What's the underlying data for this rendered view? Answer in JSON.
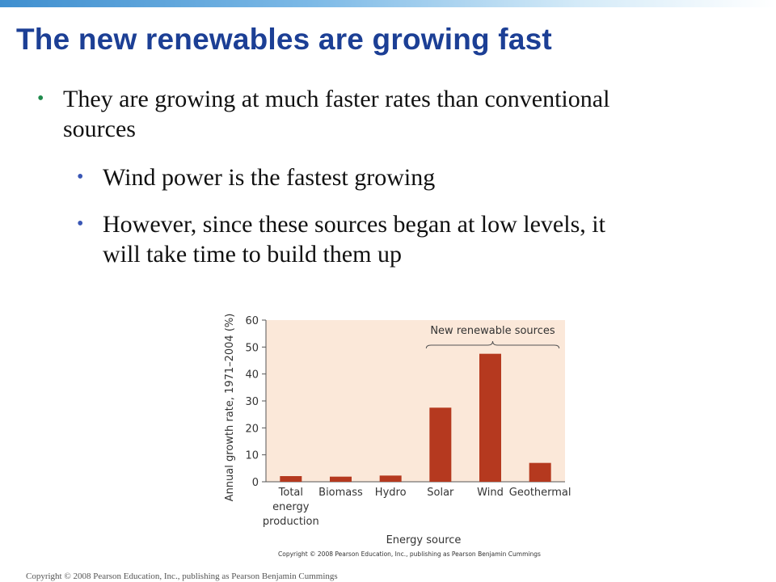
{
  "slide": {
    "title": "The new renewables are growing fast",
    "bullets": [
      "They are growing at much faster rates than conventional sources",
      "Wind power is the fastest growing",
      "However, since these sources began at low levels, it will take time to build them up"
    ],
    "footer": "Copyright © 2008 Pearson Education, Inc., publishing as Pearson Benjamin Cummings"
  },
  "colors": {
    "title": "#1c3f95",
    "bar": "#b5391f",
    "plot_background": "#fbe8d9"
  },
  "chart_data": {
    "type": "bar",
    "title": "",
    "xlabel": "Energy source",
    "ylabel": "Annual growth rate, 1971–2004 (%)",
    "categories": [
      [
        "Total",
        "energy",
        "production"
      ],
      [
        "Biomass"
      ],
      [
        "Hydro"
      ],
      [
        "Solar"
      ],
      [
        "Wind"
      ],
      [
        "Geothermal"
      ]
    ],
    "values": [
      2.1,
      1.9,
      2.3,
      27.5,
      47.5,
      7.0
    ],
    "ylim": [
      0,
      60
    ],
    "yticks": [
      0,
      10,
      20,
      30,
      40,
      50,
      60
    ],
    "grid": false,
    "annotation": {
      "text": "New renewable sources",
      "span_from": "Solar",
      "span_to": "Geothermal"
    },
    "credit": "Copyright © 2008 Pearson Education, Inc., publishing as Pearson Benjamin Cummings"
  }
}
